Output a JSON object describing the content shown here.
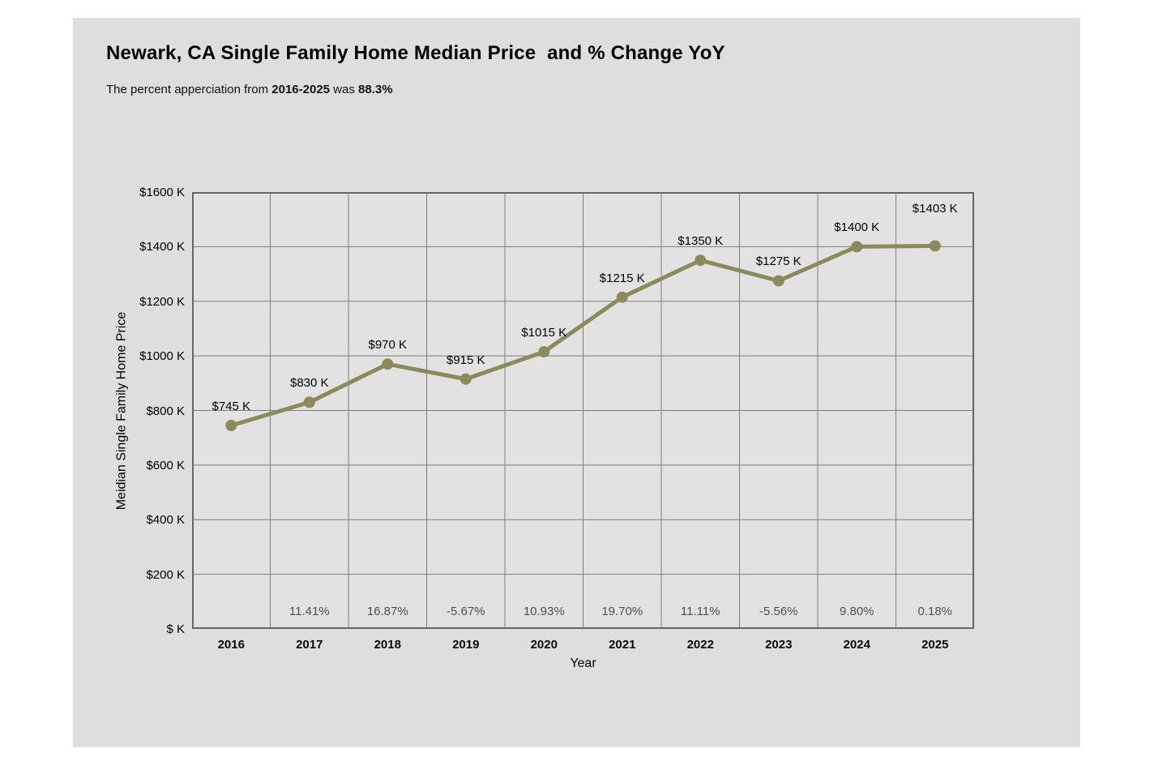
{
  "header": {
    "title": "Newark, CA Single Family Home Median Price  and % Change YoY",
    "subtitle_prefix": "The percent apperciation from ",
    "subtitle_range": "2016-2025",
    "subtitle_mid": " was ",
    "subtitle_value": "88.3%"
  },
  "chart_data": {
    "type": "line",
    "title": "Newark, CA Single Family Home Median Price  and % Change YoY",
    "xlabel": "Year",
    "ylabel": "Meidian Single Family Home Price",
    "categories": [
      "2016",
      "2017",
      "2018",
      "2019",
      "2020",
      "2021",
      "2022",
      "2023",
      "2024",
      "2025"
    ],
    "series": [
      {
        "name": "Median Single Family Home Price ($K)",
        "values": [
          745,
          830,
          970,
          915,
          1015,
          1215,
          1350,
          1275,
          1400,
          1403
        ]
      }
    ],
    "point_labels": [
      "$745 K",
      "$830 K",
      "$970 K",
      "$915 K",
      "$1015 K",
      "$1215 K",
      "$1350 K",
      "$1275 K",
      "$1400 K",
      "$1403 K"
    ],
    "pct_change_yoy": [
      "",
      "11.41%",
      "16.87%",
      "-5.67%",
      "10.93%",
      "19.70%",
      "11.11%",
      "-5.56%",
      "9.80%",
      "0.18%"
    ],
    "ylim": [
      0,
      1600
    ],
    "ytick_values": [
      0,
      200,
      400,
      600,
      800,
      1000,
      1200,
      1400,
      1600
    ],
    "ytick_labels": [
      "$ K",
      "$200 K",
      "$400 K",
      "$600 K",
      "$800 K",
      "$1000 K",
      "$1200 K",
      "$1400 K",
      "$1600 K"
    ],
    "grid": true,
    "legend": "none"
  },
  "style": {
    "panel_bg": "#dedede",
    "plot_bg": "#e2e2e2",
    "line_color": "#8a8a5c",
    "marker_color": "#8a8a5c",
    "grid_color": "#7e7e7e",
    "plot_border_color": "#666666",
    "pct_text_color": "#4f4f4f"
  }
}
